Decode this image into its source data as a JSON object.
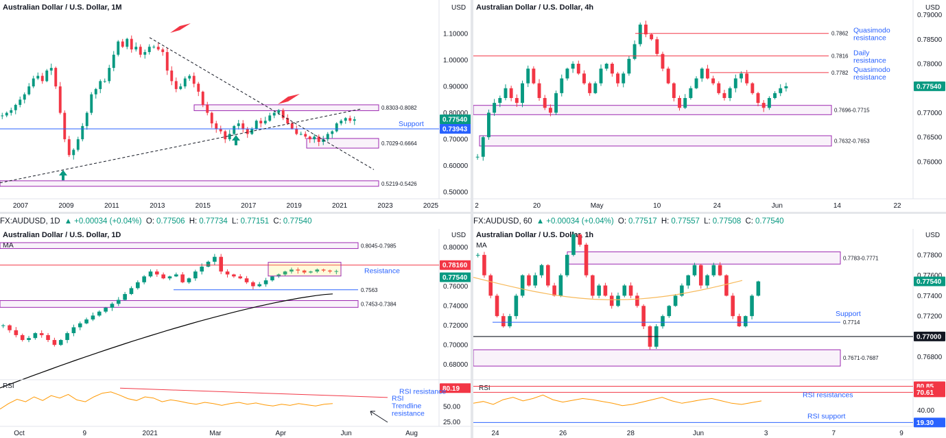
{
  "colors": {
    "up": "#089981",
    "down": "#f23645",
    "purple": "#9c27b0",
    "blue": "#2962ff",
    "red": "#f23645",
    "rsi": "#ff9800",
    "ma": "#000000",
    "ma_orange": "#f7b95a",
    "bg": "#ffffff"
  },
  "top_left_header": {
    "symbol": "FX:AUDUSD, 1D",
    "o": "0.77506",
    "h": "0.77734",
    "l": "0.77151",
    "c": "0.77540",
    "chg": "+0.00034 (+0.04%)"
  },
  "top_right_header": {
    "symbol": "FX:AUDUSD, 60",
    "o": "0.77517",
    "h": "0.77557",
    "l": "0.77508",
    "c": "0.77540",
    "chg": "+0.00034 (+0.04%)"
  },
  "chart_data": [
    {
      "id": "monthly",
      "type": "candlestick",
      "title": "Australian Dollar / U.S. Dollar, 1M",
      "currency": "USD",
      "x_ticks": [
        "2007",
        "2009",
        "2011",
        "2013",
        "2015",
        "2017",
        "2019",
        "2021",
        "2023",
        "2025"
      ],
      "y_ticks": [
        "1.10000",
        "1.00000",
        "0.90000",
        "0.80000",
        "0.70000",
        "0.60000",
        "0.50000"
      ],
      "ylim": [
        0.485,
        1.17
      ],
      "last_price": "0.77540",
      "support_level": "0.73943",
      "support_label": "Support",
      "zones": [
        {
          "label": "0.8303-0.8082",
          "low": 0.8082,
          "high": 0.8303
        },
        {
          "label": "0.7029-0.6664",
          "low": 0.6664,
          "high": 0.7029
        },
        {
          "label": "0.5219-0.5426",
          "low": 0.5219,
          "high": 0.5426
        }
      ],
      "closes": [
        0.79,
        0.8,
        0.81,
        0.83,
        0.85,
        0.87,
        0.9,
        0.93,
        0.94,
        0.92,
        0.96,
        0.97,
        0.9,
        0.8,
        0.7,
        0.64,
        0.66,
        0.7,
        0.75,
        0.8,
        0.87,
        0.89,
        0.92,
        0.92,
        0.97,
        1.02,
        1.07,
        1.05,
        1.08,
        1.04,
        1.05,
        1.02,
        1.03,
        1.05,
        1.05,
        1.04,
        1.03,
        0.96,
        0.92,
        0.89,
        0.9,
        0.93,
        0.94,
        0.91,
        0.88,
        0.83,
        0.8,
        0.76,
        0.74,
        0.73,
        0.7,
        0.72,
        0.75,
        0.76,
        0.74,
        0.72,
        0.74,
        0.77,
        0.76,
        0.77,
        0.79,
        0.8,
        0.81,
        0.78,
        0.76,
        0.74,
        0.72,
        0.72,
        0.71,
        0.7,
        0.71,
        0.69,
        0.7,
        0.72,
        0.73,
        0.76,
        0.77,
        0.78,
        0.77,
        0.7754
      ]
    },
    {
      "id": "h4",
      "type": "candlestick",
      "title": "Australian Dollar / U.S. Dollar, 4h",
      "currency": "USD",
      "x_ticks": [
        "2",
        "20",
        "May",
        "10",
        "24",
        "Jun",
        "14",
        "22"
      ],
      "y_ticks": [
        "0.79000",
        "0.78500",
        "0.78000",
        "0.77500",
        "0.77000",
        "0.76500",
        "0.76000"
      ],
      "ylim": [
        0.7555,
        0.7905
      ],
      "last_price": "0.77540",
      "levels": [
        {
          "value": "0.7862",
          "label": "Quasimodo resistance"
        },
        {
          "value": "0.7816",
          "label": "Daily resistance"
        },
        {
          "value": "0.7782",
          "label": "Quasimodo resistance"
        }
      ],
      "zones": [
        {
          "label": "0.7696-0.7715",
          "low": 0.7696,
          "high": 0.7715
        },
        {
          "label": "0.7632-0.7653",
          "low": 0.7632,
          "high": 0.7653
        }
      ],
      "closes": [
        0.761,
        0.765,
        0.77,
        0.772,
        0.773,
        0.775,
        0.773,
        0.772,
        0.776,
        0.779,
        0.776,
        0.773,
        0.771,
        0.77,
        0.774,
        0.777,
        0.779,
        0.78,
        0.778,
        0.776,
        0.774,
        0.776,
        0.779,
        0.78,
        0.778,
        0.776,
        0.778,
        0.781,
        0.784,
        0.788,
        0.786,
        0.785,
        0.782,
        0.779,
        0.776,
        0.773,
        0.771,
        0.773,
        0.775,
        0.777,
        0.779,
        0.777,
        0.776,
        0.774,
        0.773,
        0.775,
        0.777,
        0.778,
        0.776,
        0.774,
        0.772,
        0.771,
        0.773,
        0.774,
        0.775,
        0.7754
      ]
    },
    {
      "id": "daily",
      "type": "candlestick",
      "title": "Australian Dollar / U.S. Dollar, 1D",
      "currency": "USD",
      "indicator": "MA",
      "x_ticks": [
        "Oct",
        "9",
        "2021",
        "Mar",
        "Apr",
        "Jun",
        "Aug"
      ],
      "y_ticks": [
        "0.80000",
        "0.78000",
        "0.76000",
        "0.74000",
        "0.72000",
        "0.70000",
        "0.68000"
      ],
      "ylim": [
        0.67,
        0.8045
      ],
      "last_price": "0.77540",
      "resistance_price": "0.78160",
      "resistance_label": "Resistance",
      "levels": [
        {
          "value": "0.7563"
        }
      ],
      "zones": [
        {
          "label": "0.8045-0.7985",
          "low": 0.7985,
          "high": 0.8045
        },
        {
          "label": "0.7453-0.7384",
          "low": 0.7384,
          "high": 0.7453
        }
      ],
      "closes": [
        0.72,
        0.715,
        0.71,
        0.705,
        0.707,
        0.712,
        0.71,
        0.705,
        0.7,
        0.705,
        0.712,
        0.718,
        0.722,
        0.726,
        0.73,
        0.734,
        0.738,
        0.742,
        0.746,
        0.752,
        0.758,
        0.764,
        0.77,
        0.775,
        0.772,
        0.768,
        0.77,
        0.772,
        0.764,
        0.768,
        0.775,
        0.78,
        0.785,
        0.79,
        0.775,
        0.772,
        0.77,
        0.768,
        0.764,
        0.76,
        0.762,
        0.766,
        0.77,
        0.772,
        0.775,
        0.777,
        0.776,
        0.774,
        0.775,
        0.777,
        0.776,
        0.775,
        0.7754
      ],
      "ma_start": 0.656,
      "ma_end": 0.7521,
      "rsi": {
        "y_ticks": [
          "50.00",
          "25.00"
        ],
        "level": "80.19",
        "resistance_label": "RSI resistance",
        "trendline_label": "RSI Trendline resistance",
        "values": [
          46,
          55,
          62,
          58,
          66,
          60,
          68,
          64,
          70,
          61,
          58,
          66,
          72,
          74,
          69,
          63,
          60,
          66,
          64,
          58,
          61,
          59,
          56,
          54,
          57,
          55,
          52,
          55,
          57,
          54,
          56,
          53,
          51,
          54,
          52,
          55,
          53,
          51,
          54,
          55
        ]
      }
    },
    {
      "id": "hourly",
      "type": "candlestick",
      "title": "Australian Dollar / U.S. Dollar, 1h",
      "currency": "USD",
      "indicator": "MA",
      "x_ticks": [
        "24",
        "26",
        "28",
        "Jun",
        "3",
        "7",
        "9"
      ],
      "y_ticks": [
        "0.77800",
        "0.77600",
        "0.77400",
        "0.77200",
        "0.77000",
        "0.76800"
      ],
      "ylim": [
        0.7663,
        0.7792
      ],
      "last_price": "0.77540",
      "round_number": "0.77000",
      "support_level": "0.7714",
      "support_label": "Support",
      "zones": [
        {
          "label": "0.7783-0.7771",
          "low": 0.7771,
          "high": 0.7783
        },
        {
          "label": "0.7671-0.7687",
          "low": 0.7671,
          "high": 0.7687
        }
      ],
      "closes": [
        0.778,
        0.776,
        0.774,
        0.772,
        0.771,
        0.772,
        0.774,
        0.776,
        0.775,
        0.776,
        0.777,
        0.775,
        0.774,
        0.776,
        0.778,
        0.78,
        0.779,
        0.776,
        0.774,
        0.775,
        0.774,
        0.773,
        0.774,
        0.775,
        0.774,
        0.773,
        0.771,
        0.769,
        0.771,
        0.772,
        0.773,
        0.774,
        0.775,
        0.776,
        0.777,
        0.775,
        0.776,
        0.777,
        0.776,
        0.774,
        0.772,
        0.771,
        0.772,
        0.774,
        0.7754
      ],
      "rsi": {
        "y_ticks": [
          "40.00"
        ],
        "levels": [
          "80.85",
          "70.61",
          "19.30"
        ],
        "resistance_label": "RSI resistances",
        "support_label": "RSI support",
        "values": [
          52,
          55,
          50,
          58,
          62,
          56,
          60,
          66,
          58,
          54,
          57,
          60,
          58,
          55,
          52,
          48,
          50,
          54,
          58,
          62,
          56,
          52,
          55,
          58,
          60,
          56,
          52,
          50,
          53,
          56
        ]
      }
    }
  ]
}
